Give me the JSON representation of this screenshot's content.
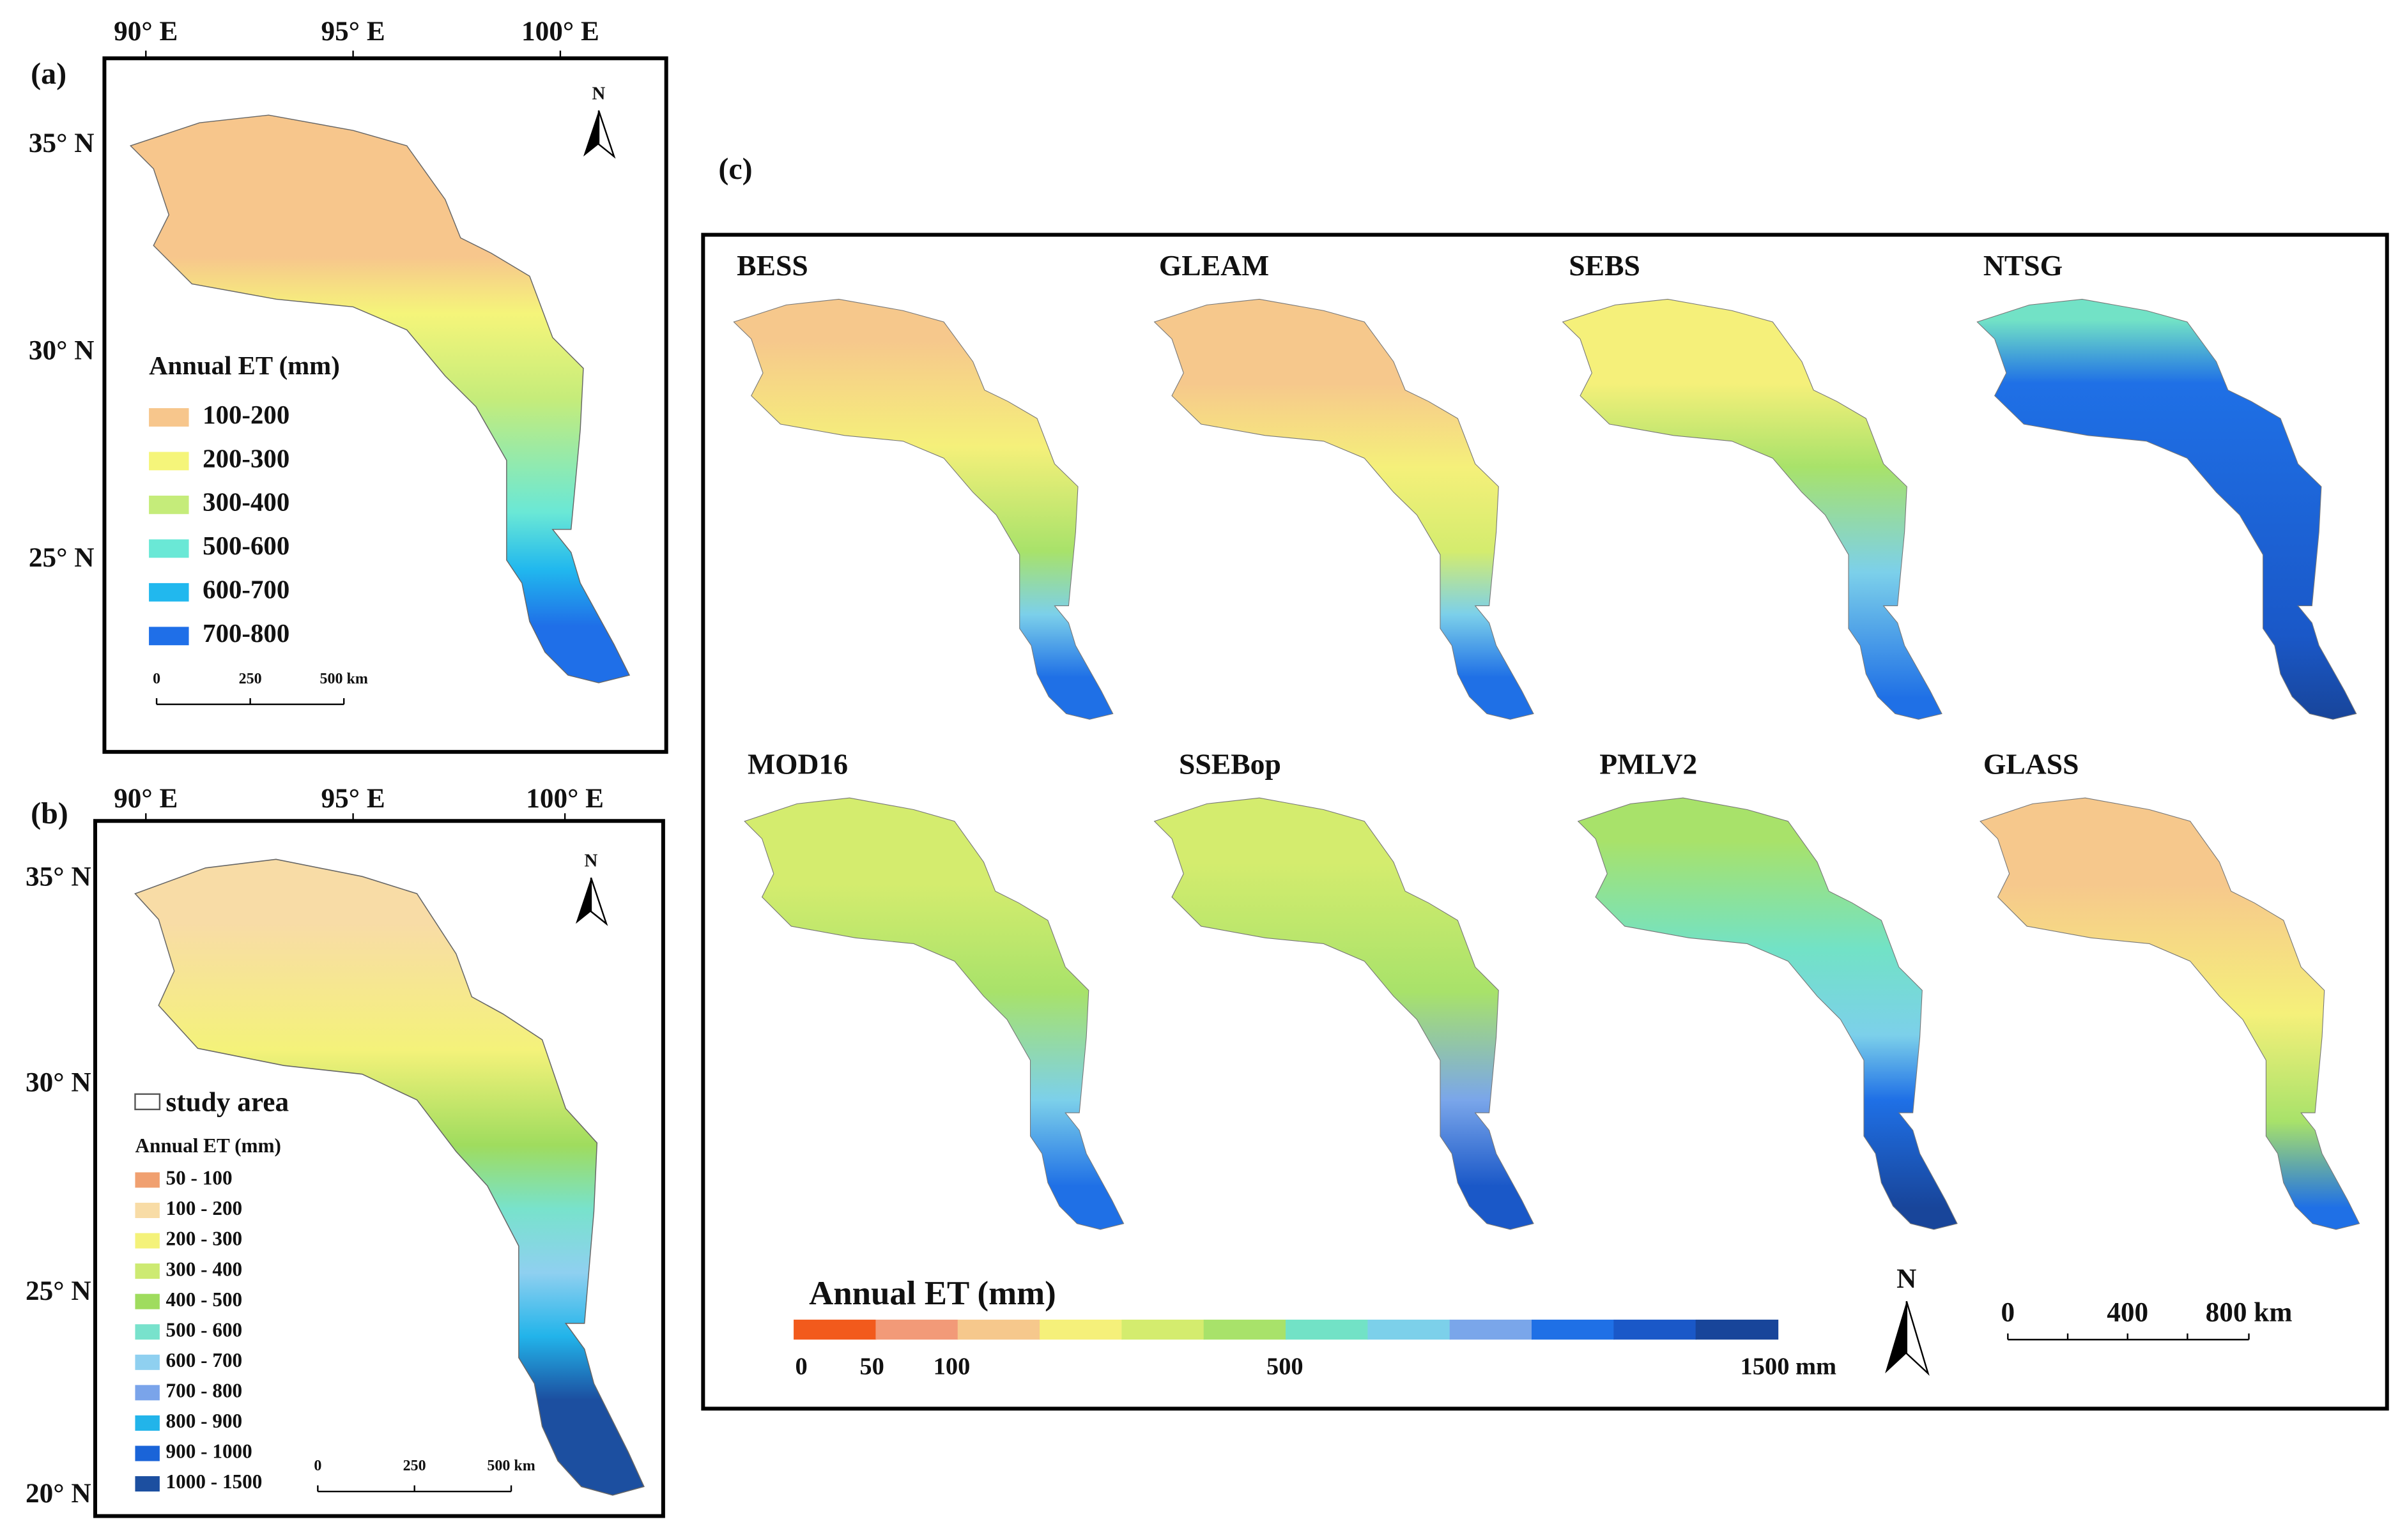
{
  "panel_a": {
    "label": "(a)",
    "lon_labels": [
      "90° E",
      "95° E",
      "100° E"
    ],
    "lat_labels": [
      "35° N",
      "30° N",
      "25° N"
    ],
    "north": "N",
    "legend_title": "Annual ET (mm)",
    "legend": [
      {
        "label": "100-200",
        "color": "#f7c68c"
      },
      {
        "label": "200-300",
        "color": "#f5f57a"
      },
      {
        "label": "300-400",
        "color": "#c5ec7a"
      },
      {
        "label": "500-600",
        "color": "#6ae8d6"
      },
      {
        "label": "600-700",
        "color": "#21b8ee"
      },
      {
        "label": "700-800",
        "color": "#1f6fe8"
      }
    ],
    "scale": [
      "0",
      "250",
      "500 km"
    ]
  },
  "panel_b": {
    "label": "(b)",
    "lon_labels": [
      "90° E",
      "95° E",
      "100° E"
    ],
    "lat_labels": [
      "35° N",
      "30° N",
      "25° N",
      "20° N"
    ],
    "north": "N",
    "study_area": "study area",
    "legend_title": "Annual ET (mm)",
    "legend": [
      {
        "label": "50 - 100",
        "color": "#f0a070"
      },
      {
        "label": "100 - 200",
        "color": "#f8dca6"
      },
      {
        "label": "200 - 300",
        "color": "#f4f27a"
      },
      {
        "label": "300 - 400",
        "color": "#cdea72"
      },
      {
        "label": "400 - 500",
        "color": "#9fdc5e"
      },
      {
        "label": "500 - 600",
        "color": "#78e2cc"
      },
      {
        "label": "600 - 700",
        "color": "#8fd0f0"
      },
      {
        "label": "700 - 800",
        "color": "#7aa4ea"
      },
      {
        "label": "800 - 900",
        "color": "#22b4ea"
      },
      {
        "label": "900 - 1000",
        "color": "#1a64d8"
      },
      {
        "label": "1000 - 1500",
        "color": "#1c4fa0"
      }
    ],
    "scale": [
      "0",
      "250",
      "500 km"
    ]
  },
  "panel_c": {
    "label": "(c)",
    "models": [
      "BESS",
      "GLEAM",
      "SEBS",
      "NTSG",
      "MOD16",
      "SSEBop",
      "PMLV2",
      "GLASS"
    ],
    "colorbar_title": "Annual ET (mm)",
    "colorbar_colors": [
      "#f25a1c",
      "#f29a78",
      "#f6c88c",
      "#f5f07a",
      "#d4ec6e",
      "#a8e26a",
      "#72e2c6",
      "#7cd0ea",
      "#7aa6ea",
      "#1f70e6",
      "#1a58c8",
      "#18459a"
    ],
    "colorbar_labels": [
      "0",
      "50",
      "100",
      "500",
      "1500 mm"
    ],
    "north": "N",
    "scale": [
      "0",
      "400",
      "800 km"
    ]
  }
}
